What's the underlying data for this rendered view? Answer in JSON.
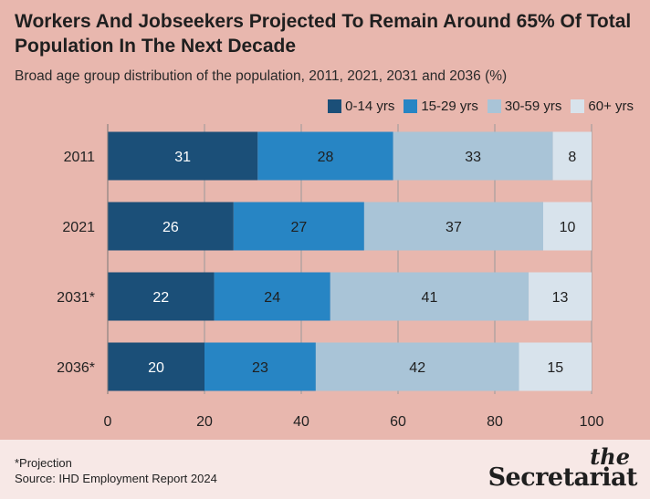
{
  "title": "Workers And Jobseekers Projected To Remain Around 65% Of Total Population In The Next Decade",
  "subtitle": "Broad age group distribution of the population, 2011, 2021, 2031 and 2036 (%)",
  "legend": [
    {
      "label": "0-14 yrs",
      "color": "#1b4f78"
    },
    {
      "label": "15-29 yrs",
      "color": "#2785c4"
    },
    {
      "label": "30-59 yrs",
      "color": "#a9c4d7"
    },
    {
      "label": "60+ yrs",
      "color": "#d8e3ec"
    }
  ],
  "chart_data": {
    "type": "bar",
    "orientation": "horizontal",
    "stacked": true,
    "categories": [
      "2011",
      "2021",
      "2031*",
      "2036*"
    ],
    "series": [
      {
        "name": "0-14 yrs",
        "color": "#1b4f78",
        "label_color": "#ffffff",
        "values": [
          31,
          26,
          22,
          20
        ]
      },
      {
        "name": "15-29 yrs",
        "color": "#2785c4",
        "label_color": "#1f1f1f",
        "values": [
          28,
          27,
          24,
          23
        ]
      },
      {
        "name": "30-59 yrs",
        "color": "#a9c4d7",
        "label_color": "#1f1f1f",
        "values": [
          33,
          37,
          41,
          42
        ]
      },
      {
        "name": "60+ yrs",
        "color": "#d8e3ec",
        "label_color": "#1f1f1f",
        "values": [
          8,
          10,
          13,
          15
        ]
      }
    ],
    "xlim": [
      0,
      100
    ],
    "xticks": [
      0,
      20,
      40,
      60,
      80,
      100
    ],
    "grid": true,
    "legend_position": "top-right"
  },
  "footer": {
    "note": "*Projection",
    "source": "Source: IHD Employment Report 2024",
    "logo_the": "the",
    "logo_name": "Secretariat"
  }
}
